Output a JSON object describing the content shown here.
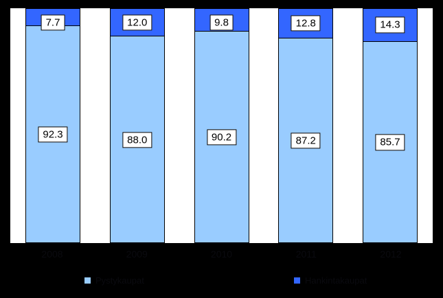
{
  "page": {
    "background_color": "#000000",
    "plot_background_color": "#FFFFFF",
    "text_color": "#000000"
  },
  "chart_data": {
    "type": "bar",
    "stacked": true,
    "orientation": "vertical",
    "unit": "%",
    "title": "",
    "xlabel": "",
    "ylabel": "",
    "ylim": [
      0,
      100
    ],
    "grid": false,
    "data_labels": true,
    "legend_position": "bottom",
    "categories": [
      "2008",
      "2009",
      "2010",
      "2011",
      "2012"
    ],
    "series": [
      {
        "name": "Pystykaupat",
        "color": "#99CCFF",
        "values": [
          92.3,
          88.0,
          90.2,
          87.2,
          85.7
        ],
        "labels": [
          "92.3",
          "88.0",
          "90.2",
          "87.2",
          "85.7"
        ]
      },
      {
        "name": "Hankintakaupat",
        "color": "#3366FF",
        "values": [
          7.7,
          12.0,
          9.8,
          12.8,
          14.3
        ],
        "labels": [
          "7.7",
          "12.0",
          "9.8",
          "12.8",
          "14.3"
        ]
      }
    ]
  },
  "legend": {
    "items": [
      {
        "label": "Pystykaupat",
        "color": "#99CCFF"
      },
      {
        "label": "Hankintakaupat",
        "color": "#3366FF"
      }
    ]
  },
  "axis": {
    "x_labels": [
      "2008",
      "2009",
      "2010",
      "2011",
      "2012"
    ]
  }
}
